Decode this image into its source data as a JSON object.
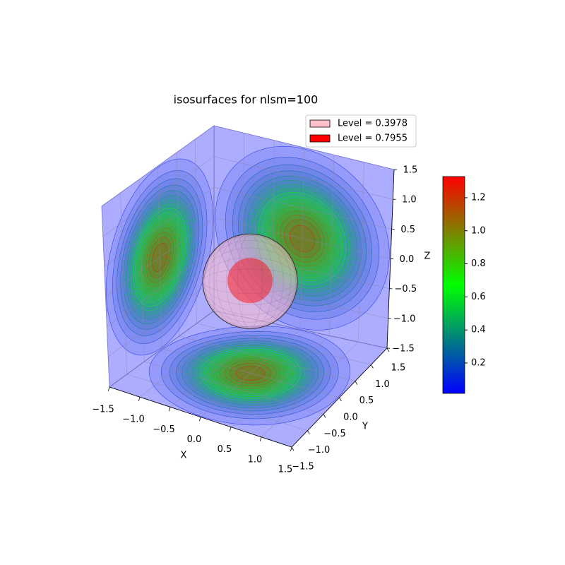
{
  "chart_data": {
    "type": "isosurface",
    "title": "isosurfaces for nlsm=100",
    "xlabel": "X",
    "ylabel": "Y",
    "zlabel": "Z",
    "xlim": [
      -1.5,
      1.5
    ],
    "ylim": [
      -1.5,
      1.5
    ],
    "zlim": [
      -1.5,
      1.5
    ],
    "xticks": [
      {
        "value": -1.5,
        "label": "−1.5"
      },
      {
        "value": -1,
        "label": "−1.0"
      },
      {
        "value": -0.5,
        "label": "−0.5"
      },
      {
        "value": 0,
        "label": "0.0"
      },
      0.5,
      {
        "value": 1,
        "label": "1.0"
      },
      1.5
    ],
    "yticks": [
      {
        "value": -1.5,
        "label": "−1.5"
      },
      {
        "value": -1,
        "label": "−1.0"
      },
      {
        "value": -0.5,
        "label": "−0.5"
      },
      {
        "value": 0,
        "label": "0.0"
      },
      0.5,
      {
        "value": 1,
        "label": "1.0"
      },
      1.5
    ],
    "zticks": [
      {
        "value": -1.5,
        "label": "−1.5"
      },
      {
        "value": -1,
        "label": "−1.0"
      },
      {
        "value": -0.5,
        "label": "−0.5"
      },
      {
        "value": 0,
        "label": "0.0"
      },
      0.5,
      {
        "value": 1,
        "label": "1.0"
      },
      1.5
    ],
    "pane_color": "#0000ff",
    "series": [
      {
        "name": "Level = 0.3978",
        "color": "#ffc0cb"
      },
      {
        "name": "Level = 0.7955",
        "color": "#ff0000"
      }
    ],
    "colorbar": {
      "lim": [
        0.016,
        1.328
      ],
      "ticks": [
        0.2,
        0.4,
        0.6,
        0.8,
        {
          "value": 1,
          "label": "1.0"
        },
        1.2
      ],
      "colors": [
        "#0000ff",
        "#00ff00",
        "#ff0000"
      ]
    }
  }
}
